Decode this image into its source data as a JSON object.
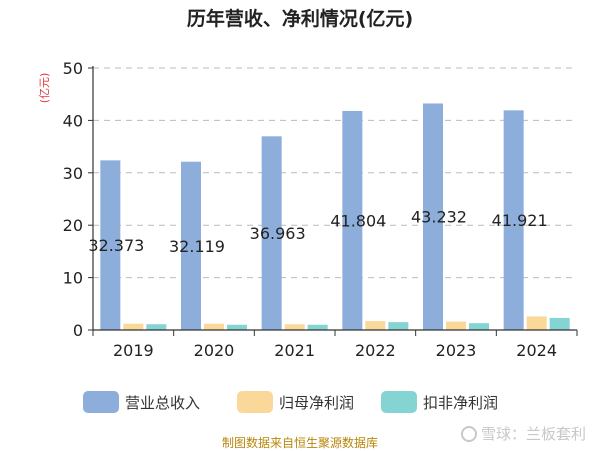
{
  "colors": {
    "revenue": "#8DAEDB",
    "net_profit": "#FAD89A",
    "non_gaap_profit": "#84D4D4",
    "title": "#222222",
    "unit": "#e0383e",
    "source": "#b8860b",
    "grid": "#bbbbbb",
    "axis": "#333333"
  },
  "legend": {
    "items": [
      {
        "label": "营业总收入",
        "color": "#8DAEDB"
      },
      {
        "label": "归母净利润",
        "color": "#FAD89A"
      },
      {
        "label": "扣非净利润",
        "color": "#84D4D4"
      }
    ]
  },
  "source_text": "制图数据来自恒生聚源数据库",
  "watermark": "雪球：兰板套利",
  "chart_data": {
    "type": "bar",
    "title": "历年营收、净利情况(亿元)",
    "ylabel": "(亿元)",
    "xlabel": "",
    "categories": [
      "2019",
      "2020",
      "2021",
      "2022",
      "2023",
      "2024"
    ],
    "series": [
      {
        "name": "营业总收入",
        "values": [
          32.373,
          32.119,
          36.963,
          41.804,
          43.232,
          41.921
        ]
      },
      {
        "name": "归母净利润",
        "values": [
          1.2,
          1.2,
          1.1,
          1.7,
          1.6,
          2.6
        ]
      },
      {
        "name": "扣非净利润",
        "values": [
          1.1,
          1.0,
          1.0,
          1.5,
          1.3,
          2.3
        ]
      }
    ],
    "data_labels": [
      "32.373",
      "32.119",
      "36.963",
      "41.804",
      "43.232",
      "41.921"
    ],
    "ylim": [
      0,
      50
    ],
    "yticks": [
      0,
      10,
      20,
      30,
      40,
      50
    ],
    "grid": true,
    "legend_position": "bottom"
  }
}
